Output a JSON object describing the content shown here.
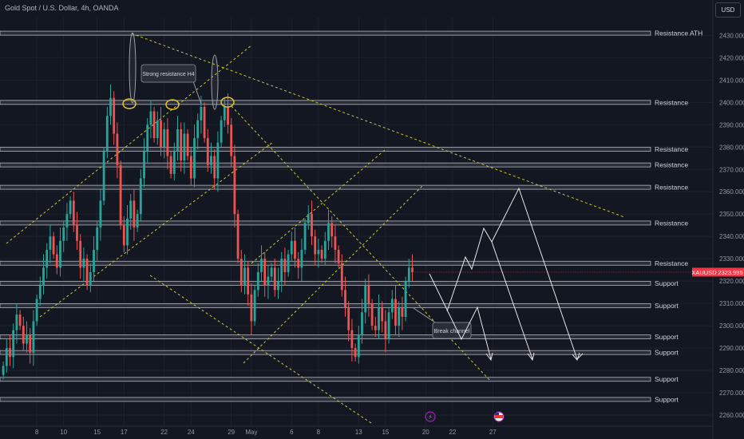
{
  "header": {
    "title": "Gold Spot / U.S. Dollar, 4h, OANDA",
    "currency_button": "USD"
  },
  "chart_data": {
    "type": "candlestick",
    "symbol": "XAUUSD",
    "timeframe": "4h",
    "current_price": 2323.995,
    "current_price_label": "2323.995",
    "ylim": [
      2255,
      2438
    ],
    "y_ticks": [
      2260,
      2270,
      2280,
      2290,
      2300,
      2310,
      2320,
      2330,
      2340,
      2350,
      2360,
      2370,
      2380,
      2390,
      2400,
      2410,
      2420,
      2430
    ],
    "y_tick_labels": [
      "2260.000",
      "2270.000",
      "2280.000",
      "2290.000",
      "2300.000",
      "2310.000",
      "2320.000",
      "2330.000",
      "2340.000",
      "2350.000",
      "2360.000",
      "2370.000",
      "2380.000",
      "2390.000",
      "2400.000",
      "2410.000",
      "2420.000",
      "2430.000"
    ],
    "x_ticks": [
      {
        "label": "8",
        "bar": 10
      },
      {
        "label": "10",
        "bar": 18
      },
      {
        "label": "15",
        "bar": 28
      },
      {
        "label": "17",
        "bar": 36
      },
      {
        "label": "22",
        "bar": 48
      },
      {
        "label": "24",
        "bar": 56
      },
      {
        "label": "29",
        "bar": 68
      },
      {
        "label": "May",
        "bar": 74
      },
      {
        "label": "6",
        "bar": 86
      },
      {
        "label": "8",
        "bar": 94
      },
      {
        "label": "13",
        "bar": 106
      },
      {
        "label": "15",
        "bar": 114
      },
      {
        "label": "20",
        "bar": 126
      },
      {
        "label": "22",
        "bar": 134
      },
      {
        "label": "27",
        "bar": 146
      }
    ],
    "candle_closes": [
      2282,
      2290,
      2286,
      2298,
      2305,
      2300,
      2292,
      2296,
      2288,
      2302,
      2312,
      2318,
      2326,
      2334,
      2340,
      2332,
      2326,
      2338,
      2344,
      2350,
      2356,
      2345,
      2338,
      2326,
      2330,
      2318,
      2324,
      2334,
      2344,
      2356,
      2378,
      2394,
      2402,
      2386,
      2372,
      2345,
      2336,
      2348,
      2356,
      2344,
      2350,
      2366,
      2378,
      2390,
      2396,
      2384,
      2392,
      2380,
      2388,
      2376,
      2368,
      2378,
      2388,
      2374,
      2386,
      2376,
      2366,
      2384,
      2392,
      2398,
      2384,
      2372,
      2376,
      2366,
      2382,
      2392,
      2398,
      2390,
      2376,
      2350,
      2330,
      2318,
      2326,
      2314,
      2302,
      2316,
      2324,
      2330,
      2318,
      2322,
      2326,
      2316,
      2320,
      2330,
      2324,
      2332,
      2338,
      2330,
      2326,
      2334,
      2346,
      2350,
      2340,
      2332,
      2334,
      2330,
      2338,
      2346,
      2340,
      2334,
      2328,
      2316,
      2308,
      2298,
      2290,
      2286,
      2296,
      2306,
      2318,
      2310,
      2300,
      2298,
      2308,
      2302,
      2294,
      2306,
      2312,
      2300,
      2308,
      2304,
      2320,
      2326,
      2324
    ],
    "candle_first_open": 2278,
    "levels": [
      {
        "price": 2431,
        "label": "Resistance ATH"
      },
      {
        "price": 2400,
        "label": "Resistance"
      },
      {
        "price": 2379,
        "label": "Resistance"
      },
      {
        "price": 2372,
        "label": "Resistance"
      },
      {
        "price": 2362,
        "label": "Resistance"
      },
      {
        "price": 2346,
        "label": "Resistance"
      },
      {
        "price": 2328,
        "label": "Resistance"
      },
      {
        "price": 2319,
        "label": "Support"
      },
      {
        "price": 2309,
        "label": "Support"
      },
      {
        "price": 2295,
        "label": "Support"
      },
      {
        "price": 2288,
        "label": "Support"
      },
      {
        "price": 2276,
        "label": "Support"
      },
      {
        "price": 2267,
        "label": "Support"
      }
    ],
    "annotations": [
      {
        "text": "Strong resistance H4"
      },
      {
        "text": "Break channel"
      }
    ],
    "colors": {
      "background": "#131722",
      "up": "#26a69a",
      "down": "#ef5350",
      "grid": "#1e222d",
      "trend": "#c8c832",
      "circle": "#e6c229",
      "projection": "#ffffff",
      "price_tag": "#f23645"
    }
  }
}
